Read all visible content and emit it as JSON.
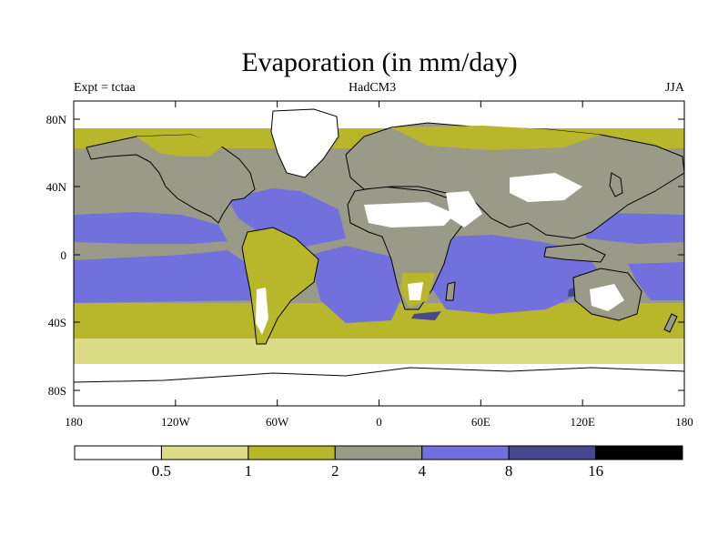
{
  "header": {
    "title": "Evaporation (in mm/day)",
    "left": "Expt = tctaa",
    "center": "HadCM3",
    "right": "JJA"
  },
  "axes": {
    "x_ticks": [
      "180",
      "120W",
      "60W",
      "0",
      "60E",
      "120E",
      "180"
    ],
    "y_ticks": [
      "80N",
      "40N",
      "0",
      "40S",
      "80S"
    ]
  },
  "legend": {
    "boundaries": [
      "0.5",
      "1",
      "2",
      "4",
      "8",
      "16"
    ],
    "colors": [
      "#ffffff",
      "#dbdc85",
      "#b8b62b",
      "#9a9a88",
      "#7270dc",
      "#484890",
      "#000000"
    ]
  },
  "palette": {
    "white": "#ffffff",
    "pale": "#dbdc85",
    "olive": "#b8b62b",
    "grey": "#9a9a88",
    "blue": "#7270dc",
    "navy": "#484890",
    "coast": "#000000"
  }
}
